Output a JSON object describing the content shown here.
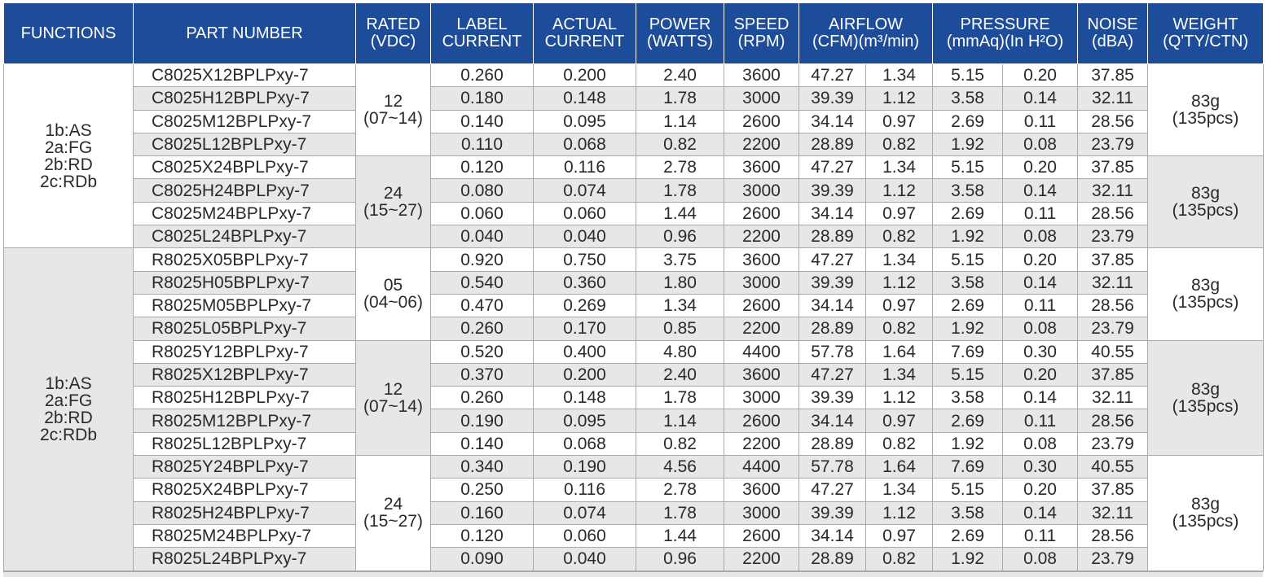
{
  "header": {
    "functions": [
      "FUNCTIONS"
    ],
    "part_number": [
      "PART NUMBER"
    ],
    "rated": [
      "RATED",
      "(VDC)"
    ],
    "label_current": [
      "LABEL",
      "CURRENT"
    ],
    "actual_current": [
      "ACTUAL",
      "CURRENT"
    ],
    "power": [
      "POWER",
      "(WATTS)"
    ],
    "speed": [
      "SPEED",
      "(RPM)"
    ],
    "airflow": [
      "AIRFLOW",
      "(CFM)(m³/min)"
    ],
    "pressure": [
      "PRESSURE",
      "(mmAq)(In H²O)"
    ],
    "noise": [
      "NOISE",
      "(dBA)"
    ],
    "weight": [
      "WEIGHT",
      "(Q'TY/CTN)"
    ]
  },
  "functions_blocks": [
    {
      "lines": [
        "1b:AS",
        "2a:FG",
        "2b:RD",
        "2c:RDb"
      ]
    },
    {
      "lines": [
        "1b:AS",
        "2a:FG",
        "2b:RD",
        "2c:RDb"
      ]
    }
  ],
  "groups": [
    {
      "voltage": [
        "12",
        "(07~14)"
      ],
      "weight": [
        "83g",
        "(135pcs)"
      ],
      "rows": [
        {
          "part": "C8025X12BPLPxy-7",
          "label_current": "0.260",
          "actual_current": "0.200",
          "power": "2.40",
          "speed": "3600",
          "cfm": "47.27",
          "m3min": "1.34",
          "mmaq": "5.15",
          "inh2o": "0.20",
          "noise": "37.85"
        },
        {
          "part": "C8025H12BPLPxy-7",
          "label_current": "0.180",
          "actual_current": "0.148",
          "power": "1.78",
          "speed": "3000",
          "cfm": "39.39",
          "m3min": "1.12",
          "mmaq": "3.58",
          "inh2o": "0.14",
          "noise": "32.11"
        },
        {
          "part": "C8025M12BPLPxy-7",
          "label_current": "0.140",
          "actual_current": "0.095",
          "power": "1.14",
          "speed": "2600",
          "cfm": "34.14",
          "m3min": "0.97",
          "mmaq": "2.69",
          "inh2o": "0.11",
          "noise": "28.56"
        },
        {
          "part": "C8025L12BPLPxy-7",
          "label_current": "0.110",
          "actual_current": "0.068",
          "power": "0.82",
          "speed": "2200",
          "cfm": "28.89",
          "m3min": "0.82",
          "mmaq": "1.92",
          "inh2o": "0.08",
          "noise": "23.79"
        }
      ]
    },
    {
      "voltage": [
        "24",
        "(15~27)"
      ],
      "weight": [
        "83g",
        "(135pcs)"
      ],
      "rows": [
        {
          "part": "C8025X24BPLPxy-7",
          "label_current": "0.120",
          "actual_current": "0.116",
          "power": "2.78",
          "speed": "3600",
          "cfm": "47.27",
          "m3min": "1.34",
          "mmaq": "5.15",
          "inh2o": "0.20",
          "noise": "37.85"
        },
        {
          "part": "C8025H24BPLPxy-7",
          "label_current": "0.080",
          "actual_current": "0.074",
          "power": "1.78",
          "speed": "3000",
          "cfm": "39.39",
          "m3min": "1.12",
          "mmaq": "3.58",
          "inh2o": "0.14",
          "noise": "32.11"
        },
        {
          "part": "C8025M24BPLPxy-7",
          "label_current": "0.060",
          "actual_current": "0.060",
          "power": "1.44",
          "speed": "2600",
          "cfm": "34.14",
          "m3min": "0.97",
          "mmaq": "2.69",
          "inh2o": "0.11",
          "noise": "28.56"
        },
        {
          "part": "C8025L24BPLPxy-7",
          "label_current": "0.040",
          "actual_current": "0.040",
          "power": "0.96",
          "speed": "2200",
          "cfm": "28.89",
          "m3min": "0.82",
          "mmaq": "1.92",
          "inh2o": "0.08",
          "noise": "23.79"
        }
      ]
    },
    {
      "voltage": [
        "05",
        "(04~06)"
      ],
      "weight": [
        "83g",
        "(135pcs)"
      ],
      "rows": [
        {
          "part": "R8025X05BPLPxy-7",
          "label_current": "0.920",
          "actual_current": "0.750",
          "power": "3.75",
          "speed": "3600",
          "cfm": "47.27",
          "m3min": "1.34",
          "mmaq": "5.15",
          "inh2o": "0.20",
          "noise": "37.85"
        },
        {
          "part": "R8025H05BPLPxy-7",
          "label_current": "0.540",
          "actual_current": "0.360",
          "power": "1.80",
          "speed": "3000",
          "cfm": "39.39",
          "m3min": "1.12",
          "mmaq": "3.58",
          "inh2o": "0.14",
          "noise": "32.11"
        },
        {
          "part": "R8025M05BPLPxy-7",
          "label_current": "0.470",
          "actual_current": "0.269",
          "power": "1.34",
          "speed": "2600",
          "cfm": "34.14",
          "m3min": "0.97",
          "mmaq": "2.69",
          "inh2o": "0.11",
          "noise": "28.56"
        },
        {
          "part": "R8025L05BPLPxy-7",
          "label_current": "0.260",
          "actual_current": "0.170",
          "power": "0.85",
          "speed": "2200",
          "cfm": "28.89",
          "m3min": "0.82",
          "mmaq": "1.92",
          "inh2o": "0.08",
          "noise": "23.79"
        }
      ]
    },
    {
      "voltage": [
        "12",
        "(07~14)"
      ],
      "weight": [
        "83g",
        "(135pcs)"
      ],
      "rows": [
        {
          "part": "R8025Y12BPLPxy-7",
          "label_current": "0.520",
          "actual_current": "0.400",
          "power": "4.80",
          "speed": "4400",
          "cfm": "57.78",
          "m3min": "1.64",
          "mmaq": "7.69",
          "inh2o": "0.30",
          "noise": "40.55"
        },
        {
          "part": "R8025X12BPLPxy-7",
          "label_current": "0.370",
          "actual_current": "0.200",
          "power": "2.40",
          "speed": "3600",
          "cfm": "47.27",
          "m3min": "1.34",
          "mmaq": "5.15",
          "inh2o": "0.20",
          "noise": "37.85"
        },
        {
          "part": "R8025H12BPLPxy-7",
          "label_current": "0.260",
          "actual_current": "0.148",
          "power": "1.78",
          "speed": "3000",
          "cfm": "39.39",
          "m3min": "1.12",
          "mmaq": "3.58",
          "inh2o": "0.14",
          "noise": "32.11"
        },
        {
          "part": "R8025M12BPLPxy-7",
          "label_current": "0.190",
          "actual_current": "0.095",
          "power": "1.14",
          "speed": "2600",
          "cfm": "34.14",
          "m3min": "0.97",
          "mmaq": "2.69",
          "inh2o": "0.11",
          "noise": "28.56"
        },
        {
          "part": "R8025L12BPLPxy-7",
          "label_current": "0.140",
          "actual_current": "0.068",
          "power": "0.82",
          "speed": "2200",
          "cfm": "28.89",
          "m3min": "0.82",
          "mmaq": "1.92",
          "inh2o": "0.08",
          "noise": "23.79"
        }
      ]
    },
    {
      "voltage": [
        "24",
        "(15~27)"
      ],
      "weight": [
        "83g",
        "(135pcs)"
      ],
      "rows": [
        {
          "part": "R8025Y24BPLPxy-7",
          "label_current": "0.340",
          "actual_current": "0.190",
          "power": "4.56",
          "speed": "4400",
          "cfm": "57.78",
          "m3min": "1.64",
          "mmaq": "7.69",
          "inh2o": "0.30",
          "noise": "40.55"
        },
        {
          "part": "R8025X24BPLPxy-7",
          "label_current": "0.250",
          "actual_current": "0.116",
          "power": "2.78",
          "speed": "3600",
          "cfm": "47.27",
          "m3min": "1.34",
          "mmaq": "5.15",
          "inh2o": "0.20",
          "noise": "37.85"
        },
        {
          "part": "R8025H24BPLPxy-7",
          "label_current": "0.160",
          "actual_current": "0.074",
          "power": "1.78",
          "speed": "3000",
          "cfm": "39.39",
          "m3min": "1.12",
          "mmaq": "3.58",
          "inh2o": "0.14",
          "noise": "32.11"
        },
        {
          "part": "R8025M24BPLPxy-7",
          "label_current": "0.120",
          "actual_current": "0.060",
          "power": "1.44",
          "speed": "2600",
          "cfm": "34.14",
          "m3min": "0.97",
          "mmaq": "2.69",
          "inh2o": "0.11",
          "noise": "28.56"
        },
        {
          "part": "R8025L24BPLPxy-7",
          "label_current": "0.090",
          "actual_current": "0.040",
          "power": "0.96",
          "speed": "2200",
          "cfm": "28.89",
          "m3min": "0.82",
          "mmaq": "1.92",
          "inh2o": "0.08",
          "noise": "23.79"
        }
      ]
    }
  ],
  "colors": {
    "header_bg": "#1d4d9a",
    "header_text": "#ffffff",
    "shade": "#e7e7e7",
    "grid": "#a9a9a9"
  }
}
